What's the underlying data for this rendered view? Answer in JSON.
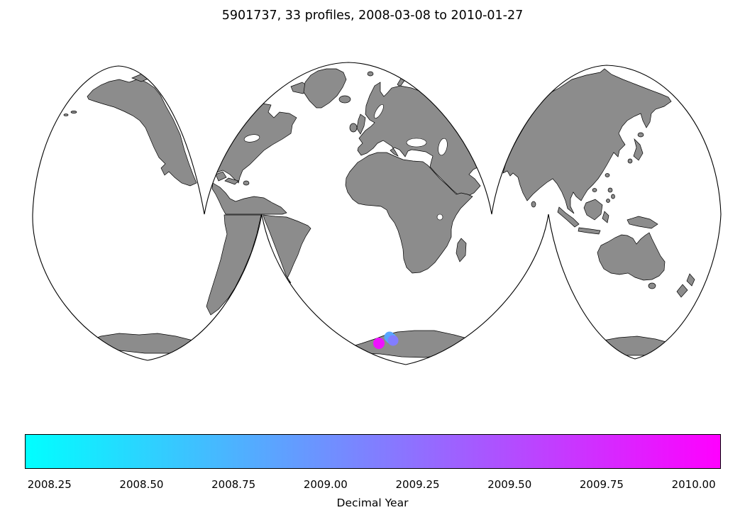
{
  "title": "5901737, 33 profiles, 2008-03-08 to 2010-01-27",
  "colors": {
    "land": "#8C8C8C",
    "coastline": "#000000",
    "background": "#FFFFFF"
  },
  "chart_data": {
    "type": "scatter",
    "subtype": "geo-scatter-on-world-map",
    "projection": "interrupted-goode-homolosine",
    "title": "5901737, 33 profiles, 2008-03-08 to 2010-01-27",
    "float_id": "5901737",
    "n_profiles": 33,
    "date_start": "2008-03-08",
    "date_end": "2010-01-27",
    "colorbar": {
      "label": "Decimal Year",
      "orientation": "horizontal",
      "cmap": "cool",
      "cmap_colors": [
        "#00FFFF",
        "#FF00FF"
      ],
      "vmin": 2008.183,
      "vmax": 2010.074,
      "ticks": [
        {
          "value": 2008.25,
          "label": "2008.25"
        },
        {
          "value": 2008.5,
          "label": "2008.50"
        },
        {
          "value": 2008.75,
          "label": "2008.75"
        },
        {
          "value": 2009.0,
          "label": "2009.00"
        },
        {
          "value": 2009.25,
          "label": "2009.25"
        },
        {
          "value": 2009.5,
          "label": "2009.50"
        },
        {
          "value": 2009.75,
          "label": "2009.75"
        },
        {
          "value": 2010.0,
          "label": "2010.00"
        }
      ]
    },
    "points": [
      {
        "decimal_year": 2008.4,
        "lon": 1.0,
        "lat": -68.0,
        "px": [
          551,
          477
        ],
        "r": 7.5,
        "color": "#1DE2FF"
      },
      {
        "decimal_year": 2008.85,
        "lon": 1.5,
        "lat": -68.5,
        "px": [
          549,
          475
        ],
        "r": 7.5,
        "color": "#5AA5FF"
      },
      {
        "decimal_year": 2009.15,
        "lon": 2.0,
        "lat": -69.0,
        "px": [
          554,
          480
        ],
        "r": 7.5,
        "color": "#827DFF"
      },
      {
        "decimal_year": 2009.95,
        "lon": -11.0,
        "lat": -69.5,
        "px": [
          534,
          484
        ],
        "r": 8.0,
        "color": "#EE11FF"
      }
    ],
    "notes_region": "profiles clustered near Antarctic coast south of Africa"
  }
}
